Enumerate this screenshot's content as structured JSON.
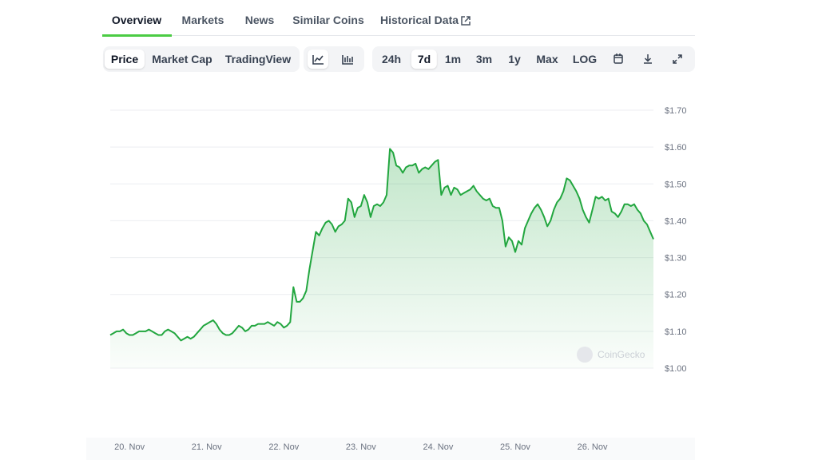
{
  "tabs": {
    "items": [
      "Overview",
      "Markets",
      "News",
      "Similar Coins",
      "Historical Data"
    ],
    "active": 0
  },
  "toolbar": {
    "views": [
      "Price",
      "Market Cap",
      "TradingView"
    ],
    "active_view": 0,
    "ranges": [
      "24h",
      "7d",
      "1m",
      "3m",
      "1y",
      "Max",
      "LOG"
    ],
    "active_range": 1
  },
  "watermark": "CoinGecko",
  "chart_data": {
    "type": "area",
    "color": "#22a63f",
    "values": [
      1.09,
      1.095,
      1.1,
      1.1,
      1.105,
      1.095,
      1.09,
      1.09,
      1.095,
      1.1,
      1.1,
      1.1,
      1.105,
      1.1,
      1.095,
      1.09,
      1.09,
      1.1,
      1.105,
      1.1,
      1.095,
      1.085,
      1.075,
      1.08,
      1.085,
      1.08,
      1.085,
      1.095,
      1.105,
      1.115,
      1.12,
      1.125,
      1.13,
      1.12,
      1.105,
      1.095,
      1.09,
      1.09,
      1.095,
      1.105,
      1.115,
      1.11,
      1.1,
      1.105,
      1.115,
      1.115,
      1.12,
      1.12,
      1.12,
      1.125,
      1.12,
      1.115,
      1.125,
      1.12,
      1.11,
      1.115,
      1.125,
      1.22,
      1.18,
      1.18,
      1.19,
      1.21,
      1.27,
      1.32,
      1.37,
      1.36,
      1.38,
      1.395,
      1.4,
      1.39,
      1.37,
      1.385,
      1.39,
      1.4,
      1.46,
      1.45,
      1.41,
      1.435,
      1.44,
      1.47,
      1.45,
      1.41,
      1.44,
      1.445,
      1.44,
      1.45,
      1.47,
      1.595,
      1.585,
      1.55,
      1.545,
      1.53,
      1.545,
      1.55,
      1.55,
      1.555,
      1.53,
      1.54,
      1.545,
      1.54,
      1.55,
      1.56,
      1.565,
      1.47,
      1.49,
      1.495,
      1.47,
      1.49,
      1.485,
      1.47,
      1.475,
      1.48,
      1.485,
      1.495,
      1.48,
      1.47,
      1.46,
      1.455,
      1.46,
      1.44,
      1.435,
      1.435,
      1.4,
      1.33,
      1.355,
      1.345,
      1.315,
      1.345,
      1.335,
      1.38,
      1.4,
      1.42,
      1.435,
      1.445,
      1.43,
      1.41,
      1.385,
      1.4,
      1.43,
      1.45,
      1.46,
      1.48,
      1.515,
      1.51,
      1.495,
      1.48,
      1.46,
      1.43,
      1.41,
      1.395,
      1.43,
      1.465,
      1.46,
      1.465,
      1.455,
      1.46,
      1.425,
      1.42,
      1.41,
      1.425,
      1.445,
      1.445,
      1.44,
      1.445,
      1.43,
      1.42,
      1.4,
      1.39,
      1.37,
      1.35
    ],
    "xlim": [
      0,
      169
    ],
    "xticks": [
      {
        "value": 6,
        "label": "20. Nov"
      },
      {
        "value": 30,
        "label": "21. Nov"
      },
      {
        "value": 54,
        "label": "22. Nov"
      },
      {
        "value": 78,
        "label": "23. Nov"
      },
      {
        "value": 102,
        "label": "24. Nov"
      },
      {
        "value": 126,
        "label": "25. Nov"
      },
      {
        "value": 150,
        "label": "26. Nov"
      }
    ],
    "ylim": [
      1.0,
      1.7
    ],
    "yticks": [
      {
        "value": 1.0,
        "label": "$1.00"
      },
      {
        "value": 1.1,
        "label": "$1.10"
      },
      {
        "value": 1.2,
        "label": "$1.20"
      },
      {
        "value": 1.3,
        "label": "$1.30"
      },
      {
        "value": 1.4,
        "label": "$1.40"
      },
      {
        "value": 1.5,
        "label": "$1.50"
      },
      {
        "value": 1.6,
        "label": "$1.60"
      },
      {
        "value": 1.7,
        "label": "$1.70"
      }
    ],
    "grid": true
  }
}
